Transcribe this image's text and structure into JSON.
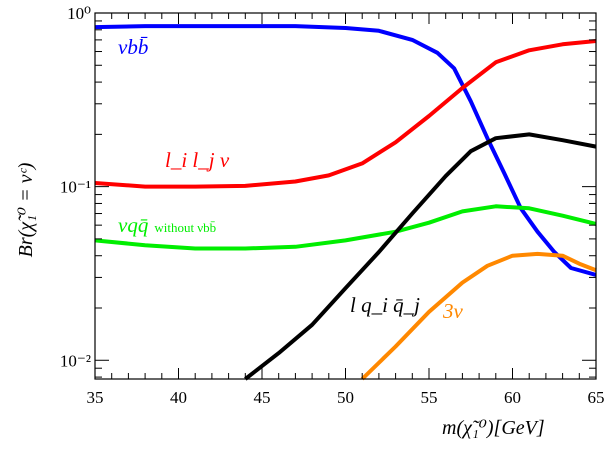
{
  "chart_data": {
    "type": "line",
    "xlabel": "m(χ̃₁⁰)[GeV]",
    "ylabel": "Br(χ̃₁⁰ = νᶜ)",
    "xlim": [
      35,
      65
    ],
    "ylim": [
      0.0078,
      1.0
    ],
    "yscale": "log",
    "grid": false,
    "x_ticks": [
      35,
      40,
      45,
      50,
      55,
      60,
      65
    ],
    "y_ticks": [
      {
        "value": 0.01,
        "label": "10⁻²"
      },
      {
        "value": 0.1,
        "label": "10⁻¹"
      },
      {
        "value": 1,
        "label": "10⁰"
      }
    ],
    "series": [
      {
        "name": "νbb̄",
        "color": "#0000ff",
        "x": [
          35,
          38,
          41,
          44,
          47,
          50,
          52,
          54,
          55.5,
          56.5,
          57.5,
          58.5,
          59.5,
          60.5,
          61.5,
          62.5,
          63.5,
          65
        ],
        "y": [
          0.83,
          0.84,
          0.84,
          0.84,
          0.84,
          0.82,
          0.79,
          0.7,
          0.59,
          0.48,
          0.31,
          0.19,
          0.12,
          0.075,
          0.055,
          0.042,
          0.034,
          0.031
        ]
      },
      {
        "name": "l_i l_j ν",
        "color": "#ff0000",
        "x": [
          35,
          38,
          41,
          44,
          47,
          49,
          51,
          53,
          55,
          57,
          59,
          61,
          63,
          65
        ],
        "y": [
          0.105,
          0.1,
          0.1,
          0.101,
          0.107,
          0.116,
          0.136,
          0.18,
          0.255,
          0.37,
          0.52,
          0.61,
          0.66,
          0.69
        ]
      },
      {
        "name": "νqq̄ without νbb̄",
        "color": "#00ee00",
        "x": [
          35,
          38,
          41,
          44,
          47,
          50,
          53,
          55,
          57,
          59,
          61,
          63,
          65
        ],
        "y": [
          0.049,
          0.046,
          0.044,
          0.044,
          0.045,
          0.049,
          0.055,
          0.062,
          0.072,
          0.077,
          0.075,
          0.068,
          0.061
        ]
      },
      {
        "name": "l q_i q̄_j",
        "color": "#000000",
        "x": [
          44,
          46,
          48,
          50,
          52,
          54,
          56,
          57.5,
          59,
          61,
          63,
          65
        ],
        "y": [
          0.0078,
          0.011,
          0.016,
          0.026,
          0.042,
          0.07,
          0.115,
          0.16,
          0.19,
          0.2,
          0.185,
          0.17
        ]
      },
      {
        "name": "3ν",
        "color": "#ff8800",
        "x": [
          51,
          53,
          55,
          57,
          58.5,
          60,
          61.5,
          63,
          64,
          65
        ],
        "y": [
          0.0078,
          0.012,
          0.019,
          0.028,
          0.035,
          0.04,
          0.041,
          0.04,
          0.036,
          0.033
        ]
      }
    ]
  }
}
